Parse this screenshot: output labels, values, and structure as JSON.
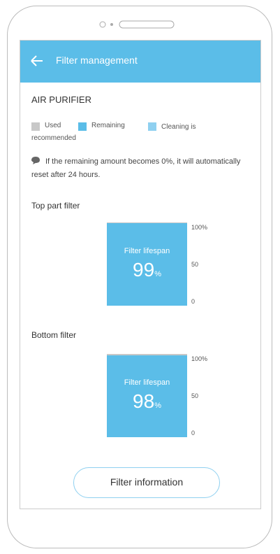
{
  "header": {
    "title": "Filter management"
  },
  "device": {
    "name": "AIR PURIFIER"
  },
  "legend": [
    {
      "label": "Used",
      "color": "#c8c8c8"
    },
    {
      "label": "Remaining",
      "color": "#5bbde8"
    },
    {
      "label": "Cleaning is recommended",
      "color": "#8fd0f0"
    }
  ],
  "note": "If the remaining amount becomes 0%, it will automatically reset after 24 hours.",
  "filters": [
    {
      "name": "Top part filter",
      "caption": "Filter lifespan",
      "value": 99,
      "unit": "%",
      "ticks": [
        "100%",
        "50",
        "0"
      ]
    },
    {
      "name": "Bottom filter",
      "caption": "Filter lifespan",
      "value": 98,
      "unit": "%",
      "ticks": [
        "100%",
        "50",
        "0"
      ]
    }
  ],
  "button": "Filter information"
}
